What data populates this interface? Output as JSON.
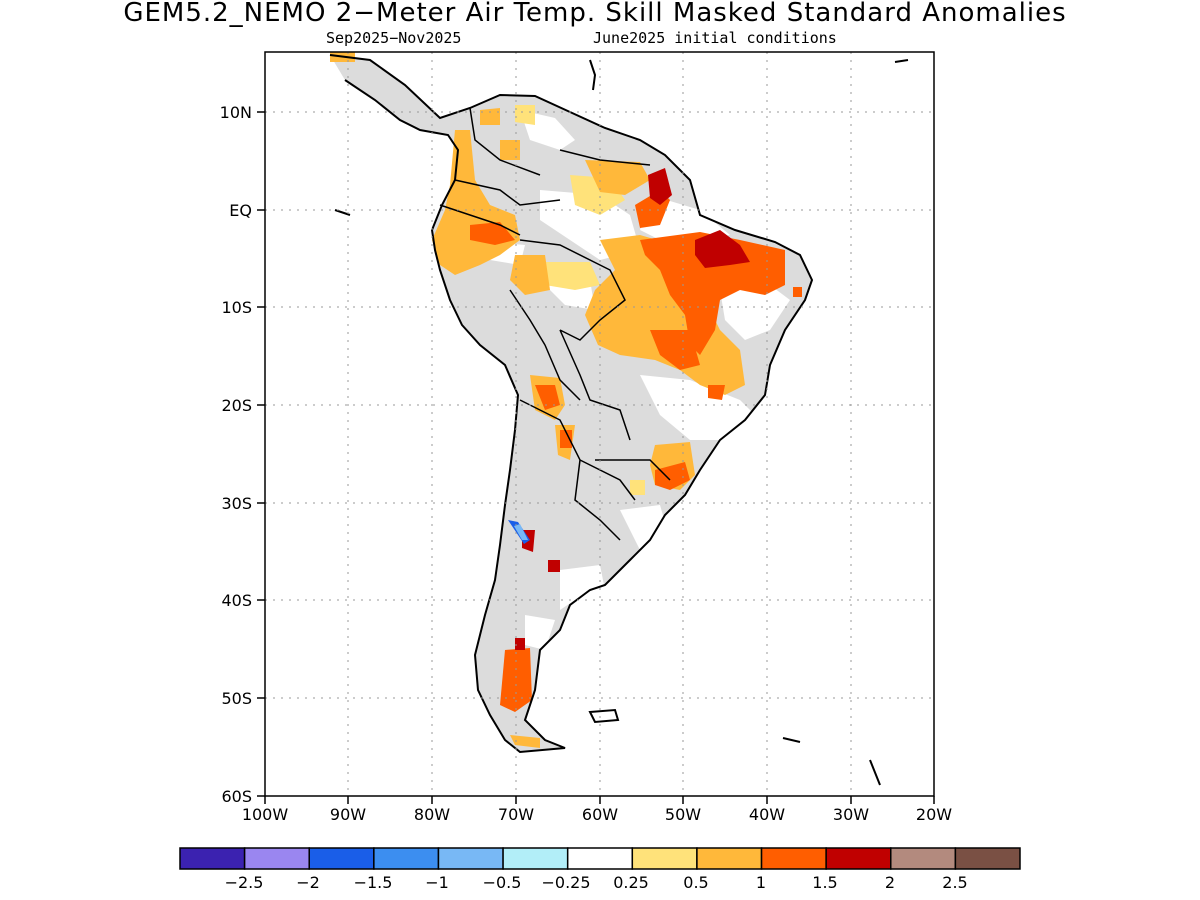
{
  "title": "GEM5.2_NEMO 2−Meter Air Temp. Skill Masked Standard Anomalies",
  "subtitle_left": "Sep2025−Nov2025",
  "subtitle_right": "June2025 initial conditions",
  "lat_labels": [
    "10N",
    "EQ",
    "10S",
    "20S",
    "30S",
    "40S",
    "50S",
    "60S"
  ],
  "lon_labels": [
    "100W",
    "90W",
    "80W",
    "70W",
    "60W",
    "50W",
    "40W",
    "30W",
    "20W"
  ],
  "colorbar": {
    "labels": [
      "−2.5",
      "−2",
      "−1.5",
      "−1",
      "−0.5",
      "−0.25",
      "0.25",
      "0.5",
      "1",
      "1.5",
      "2",
      "2.5"
    ],
    "colors": [
      "#3b22b0",
      "#9a86f0",
      "#1a5ee8",
      "#3c8ef0",
      "#78b8f5",
      "#b2eef8",
      "#ffffff",
      "#ffe27a",
      "#ffb83a",
      "#ff5e00",
      "#c00000",
      "#b38a7e",
      "#7a5044"
    ]
  },
  "map_colors": {
    "skill_masked": "#dcdcdc",
    "near_zero": "#ffffff",
    "coast": "#000000"
  }
}
